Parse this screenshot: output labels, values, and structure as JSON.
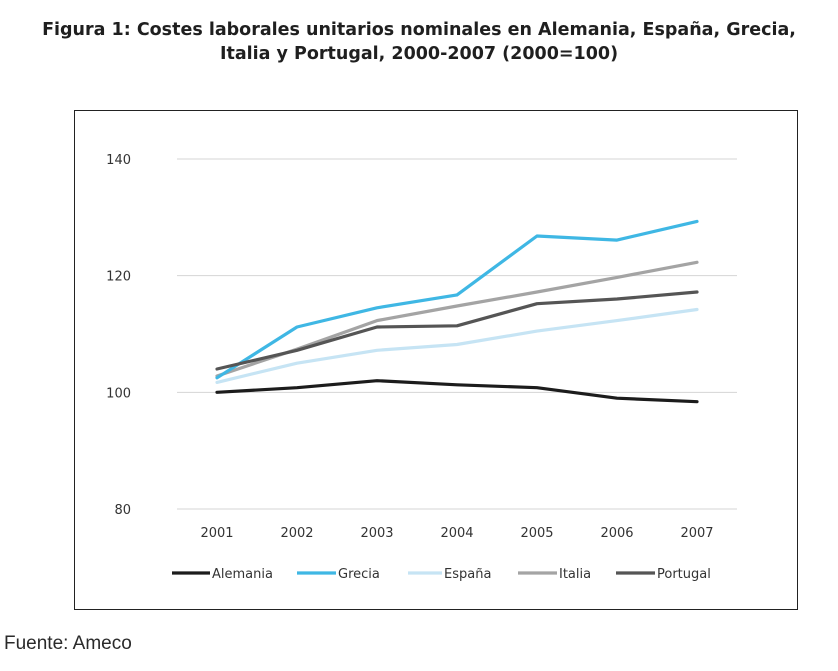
{
  "figure": {
    "title_line1": "Figura 1: Costes laborales unitarios nominales en Alemania, España, Grecia,",
    "title_line2": "Italia y Portugal, 2000-2007 (2000=100)",
    "source": "Fuente: Ameco"
  },
  "chart_data": {
    "type": "line",
    "title": "Figura 1: Costes laborales unitarios nominales en Alemania, España, Grecia, Italia y Portugal, 2000-2007 (2000=100)",
    "xlabel": "",
    "ylabel": "",
    "categories": [
      "2001",
      "2002",
      "2003",
      "2004",
      "2005",
      "2006",
      "2007"
    ],
    "ylim": [
      80,
      140
    ],
    "yticks": [
      80,
      100,
      120,
      140
    ],
    "grid": "horizontal",
    "legend_position": "bottom",
    "series": [
      {
        "name": "Alemania",
        "color": "#1c1c1c",
        "values": [
          100.0,
          100.8,
          102.0,
          101.3,
          100.8,
          99.0,
          98.4
        ]
      },
      {
        "name": "Grecia",
        "color": "#3fb7e4",
        "values": [
          102.5,
          111.2,
          114.5,
          116.7,
          126.8,
          126.1,
          129.3
        ]
      },
      {
        "name": "España",
        "color": "#c6e4f4",
        "values": [
          101.7,
          105.0,
          107.2,
          108.2,
          110.5,
          112.3,
          114.2
        ]
      },
      {
        "name": "Italia",
        "color": "#a4a4a4",
        "values": [
          102.8,
          107.4,
          112.3,
          114.8,
          117.2,
          119.7,
          122.3
        ]
      },
      {
        "name": "Portugal",
        "color": "#555555",
        "values": [
          104.0,
          107.2,
          111.2,
          111.4,
          115.2,
          116.0,
          117.2
        ]
      }
    ]
  }
}
